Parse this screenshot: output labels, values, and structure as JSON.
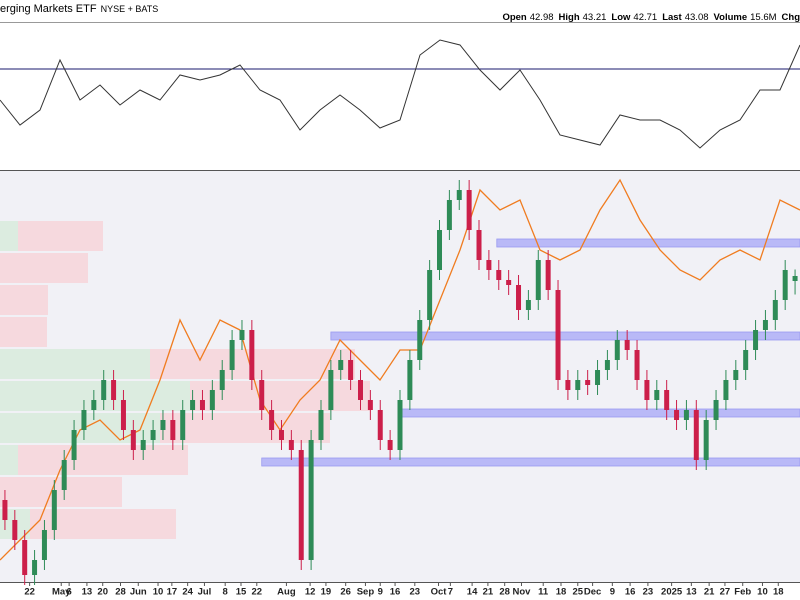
{
  "header": {
    "title": "erging Markets ETF",
    "exchange": "NYSE + BATS",
    "quote": [
      {
        "label": "Open",
        "value": 42.98
      },
      {
        "label": "High",
        "value": 43.21
      },
      {
        "label": "Low",
        "value": 42.71
      },
      {
        "label": "Last",
        "value": 43.08
      },
      {
        "label": "Volume",
        "value": "15.6M"
      }
    ],
    "chg": "Chg"
  },
  "chart_data": [
    {
      "type": "line",
      "color": "#333333",
      "ylim": [
        20,
        90
      ],
      "reference": 69.5,
      "reference_color": "#1a1a6e",
      "values": [
        54,
        41.5,
        49,
        74,
        54,
        61.5,
        51.5,
        59,
        54,
        66.5,
        64,
        66.5,
        71.5,
        59,
        54,
        39,
        49,
        56.5,
        49,
        40,
        44,
        76.5,
        84,
        81.5,
        69,
        59,
        69,
        54,
        36.5,
        34,
        31.5,
        46.5,
        44,
        44,
        39,
        30,
        39,
        44,
        59,
        59,
        81.5
      ]
    },
    {
      "type": "candlestick",
      "ylim": [
        37,
        45
      ],
      "xlim": [
        -0.5,
        80.5
      ],
      "up_color": "#2e8b57",
      "down_color": "#cc1f4a",
      "open": [
        38.6,
        38.2,
        37.8,
        37.1,
        37.4,
        38.0,
        38.8,
        39.4,
        40.0,
        40.4,
        40.6,
        41.0,
        40.6,
        40.0,
        39.6,
        39.8,
        40.0,
        40.2,
        39.8,
        40.4,
        40.6,
        40.4,
        40.8,
        41.2,
        41.8,
        42.0,
        41.0,
        40.4,
        40.0,
        39.8,
        39.6,
        37.4,
        39.8,
        40.4,
        41.2,
        41.4,
        41.0,
        40.6,
        40.4,
        39.8,
        39.6,
        40.6,
        41.4,
        42.2,
        43.2,
        44.0,
        44.6,
        44.8,
        44.0,
        43.4,
        43.2,
        43.0,
        42.9,
        42.4,
        42.6,
        43.4,
        42.8,
        41.0,
        40.8,
        41.0,
        40.9,
        41.2,
        41.4,
        41.8,
        41.6,
        41.0,
        40.6,
        40.8,
        40.4,
        40.2,
        40.4,
        39.4,
        40.2,
        40.6,
        41.0,
        41.2,
        41.6,
        42.0,
        42.2,
        42.6,
        42.98
      ],
      "high": [
        38.8,
        38.4,
        38.0,
        37.6,
        38.2,
        39.0,
        39.6,
        40.2,
        40.6,
        40.8,
        41.2,
        41.2,
        40.8,
        40.2,
        40.0,
        40.2,
        40.4,
        40.4,
        40.6,
        40.8,
        40.8,
        41.0,
        41.4,
        42.0,
        42.2,
        42.2,
        41.2,
        40.6,
        40.2,
        40.0,
        39.8,
        40.0,
        40.6,
        41.4,
        41.6,
        41.6,
        41.2,
        40.8,
        40.6,
        40.0,
        40.8,
        41.6,
        42.4,
        43.4,
        44.2,
        44.8,
        45.0,
        45.0,
        44.2,
        43.6,
        43.4,
        43.2,
        43.1,
        42.8,
        43.6,
        43.6,
        43.0,
        41.2,
        41.2,
        41.2,
        41.4,
        41.6,
        42.0,
        42.0,
        41.8,
        41.2,
        41.0,
        41.0,
        40.6,
        40.6,
        40.6,
        40.4,
        40.8,
        41.2,
        41.4,
        41.8,
        42.2,
        42.4,
        42.8,
        43.4,
        43.21
      ],
      "low": [
        38.0,
        37.6,
        36.9,
        36.9,
        37.2,
        37.8,
        38.6,
        39.2,
        39.8,
        40.2,
        40.4,
        40.4,
        39.8,
        39.4,
        39.4,
        39.6,
        39.8,
        39.6,
        39.6,
        40.2,
        40.2,
        40.2,
        40.6,
        41.0,
        41.6,
        40.8,
        40.2,
        39.8,
        39.6,
        39.4,
        37.2,
        37.2,
        39.6,
        40.2,
        41.0,
        40.8,
        40.4,
        40.2,
        39.6,
        39.4,
        39.4,
        40.4,
        41.2,
        42.0,
        43.0,
        43.8,
        44.4,
        43.8,
        43.2,
        43.0,
        42.8,
        42.7,
        42.2,
        42.2,
        42.4,
        42.6,
        40.8,
        40.6,
        40.6,
        40.7,
        40.7,
        41.0,
        41.2,
        41.4,
        40.8,
        40.4,
        40.4,
        40.2,
        40.0,
        40.0,
        39.2,
        39.2,
        40.0,
        40.4,
        40.8,
        41.0,
        41.4,
        41.8,
        42.0,
        42.4,
        42.71
      ],
      "close": [
        38.2,
        37.8,
        37.1,
        37.4,
        38.0,
        38.8,
        39.4,
        40.0,
        40.4,
        40.6,
        41.0,
        40.6,
        40.0,
        39.6,
        39.8,
        40.0,
        40.2,
        39.8,
        40.4,
        40.6,
        40.4,
        40.8,
        41.2,
        41.8,
        42.0,
        41.0,
        40.4,
        40.0,
        39.8,
        39.6,
        37.4,
        39.8,
        40.4,
        41.2,
        41.4,
        41.0,
        40.6,
        40.4,
        39.8,
        39.6,
        40.6,
        41.4,
        42.2,
        43.2,
        44.0,
        44.6,
        44.8,
        44.0,
        43.4,
        43.2,
        43.0,
        42.9,
        42.4,
        42.6,
        43.4,
        42.8,
        41.0,
        40.8,
        41.0,
        40.9,
        41.2,
        41.4,
        41.8,
        41.6,
        41.0,
        40.6,
        40.8,
        40.4,
        40.2,
        40.4,
        39.4,
        40.2,
        40.6,
        41.0,
        41.2,
        41.6,
        42.0,
        42.2,
        42.6,
        43.2,
        43.08
      ],
      "overlay": {
        "color": "#f07c20",
        "values": [
          37.4,
          37.8,
          38.2,
          39.2,
          40.0,
          40.2,
          39.8,
          40.0,
          41.0,
          42.2,
          41.4,
          42.2,
          42.0,
          40.6,
          40.0,
          40.6,
          41.0,
          41.8,
          41.4,
          41.0,
          41.6,
          41.6,
          42.6,
          43.6,
          44.8,
          44.4,
          44.6,
          43.6,
          43.4,
          43.6,
          44.4,
          45.0,
          44.2,
          43.6,
          43.2,
          43.0,
          43.4,
          43.6,
          43.4,
          44.6,
          44.4
        ]
      },
      "levels": [
        {
          "value": 43.74,
          "start": 49.8
        },
        {
          "value": 41.88,
          "start": 33
        },
        {
          "value": 40.34,
          "start": 40
        },
        {
          "value": 39.36,
          "start": 26
        }
      ],
      "level_color": "#b9b9f7",
      "volume_profile": {
        "xlim": [
          0,
          800
        ],
        "up_color": "#dcece0",
        "down_color": "#f6d9de",
        "edges": [
          44.2,
          43.56,
          42.92,
          42.28,
          41.64,
          41.0,
          40.36,
          39.72,
          39.08,
          38.44,
          37.8
        ],
        "up": [
          18,
          0,
          0,
          0,
          150,
          190,
          160,
          18,
          0,
          30
        ],
        "down": [
          85,
          88,
          48,
          47,
          205,
          180,
          170,
          170,
          122,
          146
        ]
      },
      "xticks": [
        {
          "value": 2.5,
          "label": "22"
        },
        {
          "value": 5.7,
          "label": "May"
        },
        {
          "value": 6.5,
          "label": "6"
        },
        {
          "value": 8.3,
          "label": "13"
        },
        {
          "value": 9.9,
          "label": "20"
        },
        {
          "value": 11.7,
          "label": "28"
        },
        {
          "value": 13.5,
          "label": "Jun"
        },
        {
          "value": 15.5,
          "label": "10"
        },
        {
          "value": 16.9,
          "label": "17"
        },
        {
          "value": 18.5,
          "label": "24"
        },
        {
          "value": 20.2,
          "label": "Jul"
        },
        {
          "value": 22.3,
          "label": "8"
        },
        {
          "value": 23.9,
          "label": "15"
        },
        {
          "value": 25.5,
          "label": "22"
        },
        {
          "value": 28.5,
          "label": "Aug"
        },
        {
          "value": 30.9,
          "label": "12"
        },
        {
          "value": 32.5,
          "label": "19"
        },
        {
          "value": 34.5,
          "label": "26"
        },
        {
          "value": 36.5,
          "label": "Sep"
        },
        {
          "value": 38,
          "label": "9"
        },
        {
          "value": 39.5,
          "label": "16"
        },
        {
          "value": 41.5,
          "label": "23"
        },
        {
          "value": 43.9,
          "label": "Oct"
        },
        {
          "value": 45.1,
          "label": "7"
        },
        {
          "value": 47.3,
          "label": "14"
        },
        {
          "value": 48.9,
          "label": "21"
        },
        {
          "value": 50.6,
          "label": "28"
        },
        {
          "value": 52.3,
          "label": "Nov"
        },
        {
          "value": 54.5,
          "label": "11"
        },
        {
          "value": 56.3,
          "label": "18"
        },
        {
          "value": 58,
          "label": "25"
        },
        {
          "value": 59.5,
          "label": "Dec"
        },
        {
          "value": 61.5,
          "label": "9"
        },
        {
          "value": 63.3,
          "label": "16"
        },
        {
          "value": 65.1,
          "label": "23"
        },
        {
          "value": 67.5,
          "label": "2025"
        },
        {
          "value": 69.5,
          "label": "13"
        },
        {
          "value": 71.3,
          "label": "21"
        },
        {
          "value": 72.9,
          "label": "27"
        },
        {
          "value": 74.7,
          "label": "Feb"
        },
        {
          "value": 76.7,
          "label": "10"
        },
        {
          "value": 78.3,
          "label": "18"
        }
      ]
    }
  ]
}
